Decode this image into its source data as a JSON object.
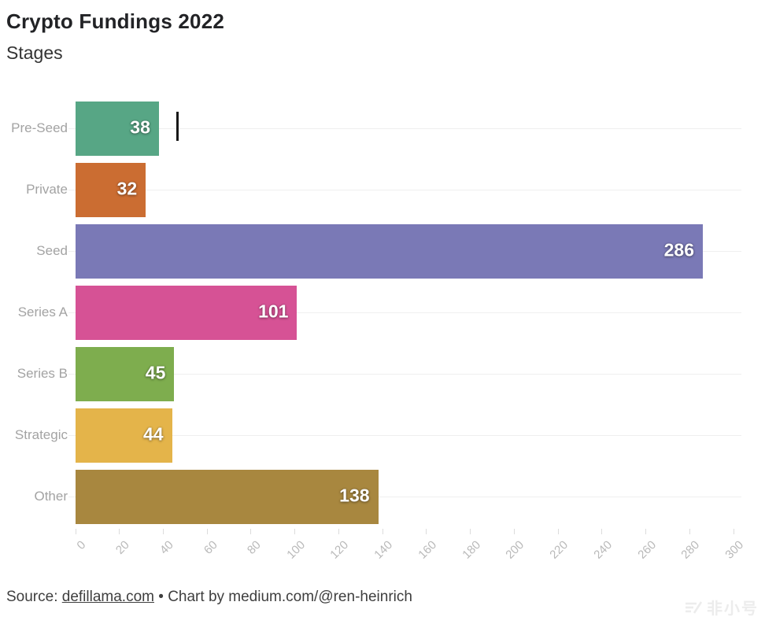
{
  "header": {
    "title": "Crypto Fundings 2022",
    "subtitle": "Stages"
  },
  "chart_data": {
    "type": "bar",
    "orientation": "horizontal",
    "title": "Crypto Fundings 2022",
    "subtitle": "Stages",
    "categories": [
      "Pre-Seed",
      "Private",
      "Seed",
      "Series A",
      "Series B",
      "Strategic",
      "Other"
    ],
    "values": [
      38,
      32,
      286,
      101,
      45,
      44,
      138
    ],
    "colors": [
      "#57a685",
      "#cb6d32",
      "#7a79b6",
      "#d65295",
      "#7ead4e",
      "#e4b44a",
      "#a8873f"
    ],
    "xlim": [
      0,
      300
    ],
    "x_ticks": [
      0,
      20,
      40,
      60,
      80,
      100,
      120,
      140,
      160,
      180,
      200,
      220,
      240,
      260,
      280,
      300
    ],
    "grid": "horizontal light gridline at each category row center, no vertical gridlines",
    "legend": "none",
    "value_labels": "white bold numbers inside right end of each bar"
  },
  "footer": {
    "source_prefix": "Source: ",
    "source_link": "defillama.com",
    "separator": " • ",
    "credit": "Chart by medium.com/@ren-heinrich"
  },
  "watermark": {
    "text": "非小号"
  }
}
